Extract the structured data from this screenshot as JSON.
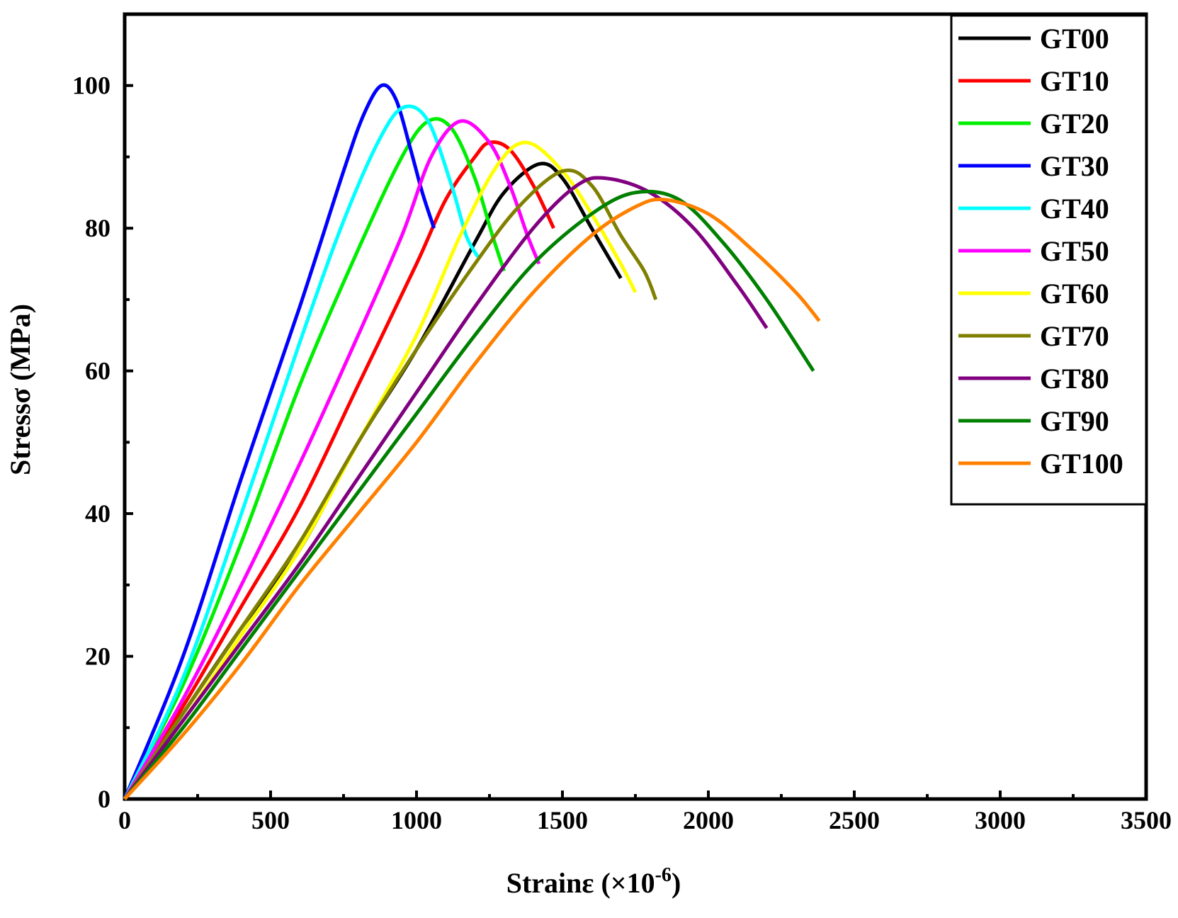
{
  "chart_data": {
    "type": "line",
    "title": "",
    "xlabel": "Strainε (×10",
    "xlabel_sup": "-6",
    "xlabel_end": ")",
    "ylabel": "Stressσ (MPa)",
    "xlim": [
      0,
      3500
    ],
    "ylim": [
      0,
      110
    ],
    "x_ticks": [
      0,
      500,
      1000,
      1500,
      2000,
      2500,
      3000,
      3500
    ],
    "x_tick_labels": [
      "0",
      "500",
      "1000",
      "1500",
      "2000",
      "2500",
      "3000",
      "3500"
    ],
    "y_ticks": [
      0,
      20,
      40,
      60,
      80,
      100
    ],
    "y_tick_labels": [
      "0",
      "20",
      "40",
      "60",
      "80",
      "100"
    ],
    "x_minor_ticks": [
      250,
      750,
      1250,
      1750,
      2250,
      2750,
      3250
    ],
    "y_minor_ticks": [
      10,
      30,
      50,
      70,
      90
    ],
    "grid": false,
    "legend_position": "top-right",
    "series": [
      {
        "name": "GT00",
        "color": "#000000",
        "points": [
          [
            0,
            0
          ],
          [
            200,
            12
          ],
          [
            400,
            24
          ],
          [
            600,
            35
          ],
          [
            800,
            50
          ],
          [
            1000,
            63
          ],
          [
            1200,
            78
          ],
          [
            1300,
            85
          ],
          [
            1420,
            89
          ],
          [
            1500,
            87
          ],
          [
            1600,
            80
          ],
          [
            1700,
            73
          ]
        ]
      },
      {
        "name": "GT10",
        "color": "#ff0000",
        "points": [
          [
            0,
            0
          ],
          [
            200,
            13
          ],
          [
            400,
            27
          ],
          [
            600,
            41
          ],
          [
            800,
            58
          ],
          [
            1000,
            75
          ],
          [
            1100,
            84
          ],
          [
            1200,
            90
          ],
          [
            1250,
            92
          ],
          [
            1320,
            91
          ],
          [
            1400,
            86
          ],
          [
            1470,
            80
          ]
        ]
      },
      {
        "name": "GT20",
        "color": "#00ee00",
        "points": [
          [
            0,
            0
          ],
          [
            200,
            16
          ],
          [
            400,
            36
          ],
          [
            600,
            58
          ],
          [
            800,
            77
          ],
          [
            950,
            90
          ],
          [
            1040,
            95
          ],
          [
            1120,
            94
          ],
          [
            1200,
            87
          ],
          [
            1260,
            79
          ],
          [
            1300,
            74
          ]
        ]
      },
      {
        "name": "GT30",
        "color": "#0000ff",
        "points": [
          [
            0,
            0
          ],
          [
            200,
            20
          ],
          [
            400,
            45
          ],
          [
            600,
            69
          ],
          [
            750,
            88
          ],
          [
            820,
            96
          ],
          [
            880,
            100
          ],
          [
            930,
            98
          ],
          [
            980,
            91
          ],
          [
            1020,
            85
          ],
          [
            1060,
            80
          ]
        ]
      },
      {
        "name": "GT40",
        "color": "#00ffff",
        "points": [
          [
            0,
            0
          ],
          [
            200,
            17
          ],
          [
            400,
            40
          ],
          [
            600,
            64
          ],
          [
            750,
            81
          ],
          [
            880,
            93
          ],
          [
            960,
            97
          ],
          [
            1040,
            95
          ],
          [
            1120,
            86
          ],
          [
            1170,
            79
          ],
          [
            1210,
            76
          ]
        ]
      },
      {
        "name": "GT50",
        "color": "#ff00ff",
        "points": [
          [
            0,
            0
          ],
          [
            200,
            14
          ],
          [
            400,
            30
          ],
          [
            600,
            47
          ],
          [
            800,
            65
          ],
          [
            950,
            79
          ],
          [
            1050,
            90
          ],
          [
            1150,
            95
          ],
          [
            1250,
            92
          ],
          [
            1320,
            86
          ],
          [
            1380,
            79
          ],
          [
            1420,
            75
          ]
        ]
      },
      {
        "name": "GT60",
        "color": "#ffff00",
        "points": [
          [
            0,
            0
          ],
          [
            200,
            11
          ],
          [
            400,
            23
          ],
          [
            600,
            35
          ],
          [
            800,
            50
          ],
          [
            1000,
            65
          ],
          [
            1150,
            79
          ],
          [
            1280,
            89
          ],
          [
            1380,
            92
          ],
          [
            1500,
            88
          ],
          [
            1600,
            82
          ],
          [
            1700,
            75
          ],
          [
            1750,
            71
          ]
        ]
      },
      {
        "name": "GT70",
        "color": "#808000",
        "points": [
          [
            0,
            0
          ],
          [
            200,
            12
          ],
          [
            400,
            24
          ],
          [
            600,
            36
          ],
          [
            800,
            50
          ],
          [
            1000,
            63
          ],
          [
            1200,
            75
          ],
          [
            1350,
            83
          ],
          [
            1500,
            88
          ],
          [
            1600,
            86
          ],
          [
            1700,
            79
          ],
          [
            1780,
            74
          ],
          [
            1820,
            70
          ]
        ]
      },
      {
        "name": "GT80",
        "color": "#800080",
        "points": [
          [
            0,
            0
          ],
          [
            200,
            11
          ],
          [
            400,
            22
          ],
          [
            600,
            33
          ],
          [
            800,
            45
          ],
          [
            1000,
            57
          ],
          [
            1200,
            69
          ],
          [
            1400,
            80
          ],
          [
            1550,
            86
          ],
          [
            1650,
            87
          ],
          [
            1800,
            85
          ],
          [
            1950,
            80
          ],
          [
            2100,
            72
          ],
          [
            2200,
            66
          ]
        ]
      },
      {
        "name": "GT90",
        "color": "#008000",
        "points": [
          [
            0,
            0
          ],
          [
            200,
            10
          ],
          [
            400,
            21
          ],
          [
            600,
            32
          ],
          [
            800,
            43
          ],
          [
            1000,
            54
          ],
          [
            1200,
            65
          ],
          [
            1400,
            75
          ],
          [
            1600,
            82
          ],
          [
            1750,
            85
          ],
          [
            1900,
            84
          ],
          [
            2050,
            78
          ],
          [
            2200,
            70
          ],
          [
            2360,
            60
          ]
        ]
      },
      {
        "name": "GT100",
        "color": "#ff8000",
        "points": [
          [
            0,
            0
          ],
          [
            200,
            9
          ],
          [
            400,
            19
          ],
          [
            600,
            30
          ],
          [
            800,
            40
          ],
          [
            1000,
            50
          ],
          [
            1200,
            61
          ],
          [
            1400,
            71
          ],
          [
            1600,
            79
          ],
          [
            1750,
            83
          ],
          [
            1850,
            84
          ],
          [
            2000,
            82
          ],
          [
            2150,
            77
          ],
          [
            2300,
            71
          ],
          [
            2380,
            67
          ]
        ]
      }
    ]
  }
}
